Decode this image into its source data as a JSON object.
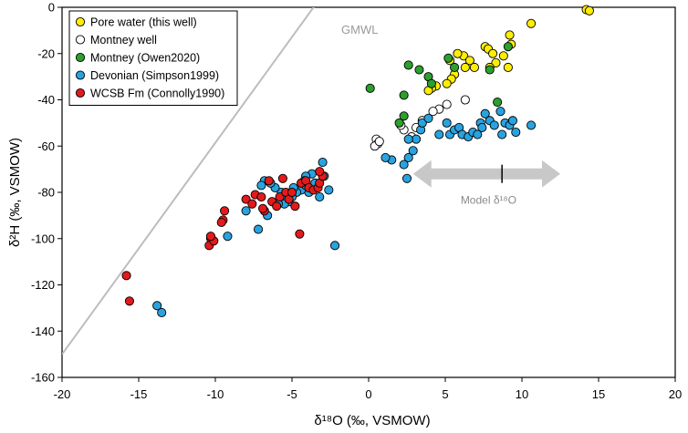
{
  "chart_data": {
    "type": "scatter",
    "xlabel": "δ¹⁸O (‰, VSMOW)",
    "ylabel": "δ²H (‰, VSMOW)",
    "xlim": [
      -20,
      20
    ],
    "ylim": [
      -160,
      0
    ],
    "xticks": [
      -20,
      -15,
      -10,
      -5,
      0,
      5,
      10,
      15,
      20
    ],
    "yticks": [
      0,
      -20,
      -40,
      -60,
      -80,
      -100,
      -120,
      -140,
      -160
    ],
    "legend_position": "top-left",
    "gmwl": {
      "label": "GMWL",
      "x": [
        -20,
        -2.5
      ],
      "y": [
        -150,
        10
      ]
    },
    "model_annotation": {
      "label": "Model δ¹⁸O",
      "x_from": 2.9,
      "x_to": 12.5,
      "center_x": 8.7,
      "y": -72
    },
    "series": [
      {
        "name": "Pore water (this well)",
        "fill": "#ffee00",
        "points": [
          [
            14.2,
            -1
          ],
          [
            14.4,
            -1.5
          ],
          [
            10.6,
            -7
          ],
          [
            9.2,
            -12
          ],
          [
            9.3,
            -16
          ],
          [
            7.6,
            -17
          ],
          [
            7.8,
            -18
          ],
          [
            8.1,
            -20
          ],
          [
            8.8,
            -21
          ],
          [
            6.2,
            -21
          ],
          [
            5.8,
            -20
          ],
          [
            5.3,
            -23
          ],
          [
            6.6,
            -23
          ],
          [
            6.9,
            -26
          ],
          [
            8.3,
            -24
          ],
          [
            7.9,
            -26
          ],
          [
            9.1,
            -26
          ],
          [
            6.3,
            -26
          ],
          [
            5.6,
            -29
          ],
          [
            5.4,
            -31
          ],
          [
            5.1,
            -33
          ],
          [
            4.4,
            -34
          ],
          [
            4.1,
            -35
          ],
          [
            3.9,
            -36
          ]
        ]
      },
      {
        "name": "Montney well",
        "fill": "#ffffff",
        "points": [
          [
            6.3,
            -40
          ],
          [
            5.1,
            -42
          ],
          [
            4.6,
            -44
          ],
          [
            4.2,
            -45
          ],
          [
            3.5,
            -49
          ],
          [
            3.1,
            -52
          ],
          [
            2.8,
            -56
          ],
          [
            2.3,
            -53
          ],
          [
            2.1,
            -51
          ],
          [
            0.5,
            -57
          ],
          [
            0.6,
            -59
          ],
          [
            0.4,
            -60
          ],
          [
            0.7,
            -58
          ]
        ]
      },
      {
        "name": "Montney (Owen2020)",
        "fill": "#2ca02c",
        "points": [
          [
            2.6,
            -25
          ],
          [
            3.3,
            -27
          ],
          [
            3.9,
            -30
          ],
          [
            4.1,
            -33
          ],
          [
            5.2,
            -22
          ],
          [
            5.6,
            -26
          ],
          [
            7.9,
            -27
          ],
          [
            9.1,
            -17
          ],
          [
            8.4,
            -41
          ],
          [
            2.3,
            -38
          ],
          [
            2.3,
            -47
          ],
          [
            2.0,
            -50
          ],
          [
            0.1,
            -35
          ]
        ]
      },
      {
        "name": "Devonian (Simpson1999)",
        "fill": "#29a3e0",
        "points": [
          [
            1.5,
            -66
          ],
          [
            2.3,
            -68
          ],
          [
            2.6,
            -65
          ],
          [
            2.9,
            -62
          ],
          [
            3.1,
            -57
          ],
          [
            3.4,
            -53
          ],
          [
            3.5,
            -50
          ],
          [
            3.9,
            -48
          ],
          [
            4.6,
            -55
          ],
          [
            5.1,
            -50
          ],
          [
            5.3,
            -55
          ],
          [
            5.6,
            -53
          ],
          [
            5.9,
            -52
          ],
          [
            6.1,
            -55
          ],
          [
            6.5,
            -56
          ],
          [
            6.8,
            -54
          ],
          [
            7.3,
            -50
          ],
          [
            7.4,
            -52
          ],
          [
            7.9,
            -49
          ],
          [
            7.6,
            -46
          ],
          [
            8.2,
            -51
          ],
          [
            8.6,
            -45
          ],
          [
            8.9,
            -50
          ],
          [
            9.2,
            -51
          ],
          [
            9.4,
            -49
          ],
          [
            9.6,
            -54
          ],
          [
            10.6,
            -51
          ],
          [
            8.7,
            -55
          ],
          [
            7.1,
            -55
          ],
          [
            2.6,
            -57
          ],
          [
            1.1,
            -65
          ],
          [
            2.5,
            -74
          ],
          [
            -2.2,
            -103
          ],
          [
            -3,
            -67
          ],
          [
            -2.9,
            -73
          ],
          [
            -2.6,
            -79
          ],
          [
            -3.2,
            -82
          ],
          [
            -3.5,
            -76
          ],
          [
            -3.7,
            -72
          ],
          [
            -3.9,
            -80
          ],
          [
            -4.1,
            -73
          ],
          [
            -4.2,
            -75
          ],
          [
            -4.4,
            -79
          ],
          [
            -4.7,
            -80
          ],
          [
            -4.9,
            -78
          ],
          [
            -5.0,
            -82
          ],
          [
            -5.2,
            -84
          ],
          [
            -5.4,
            -83
          ],
          [
            -5.5,
            -85
          ],
          [
            -5.7,
            -80
          ],
          [
            -5.9,
            -85
          ],
          [
            -6.1,
            -78
          ],
          [
            -6.4,
            -76
          ],
          [
            -6.6,
            -90
          ],
          [
            -6.8,
            -75
          ],
          [
            -7.0,
            -77
          ],
          [
            -7.2,
            -96
          ],
          [
            -8.0,
            -88
          ],
          [
            -9.2,
            -99
          ],
          [
            -13.5,
            -132
          ],
          [
            -13.8,
            -129
          ],
          [
            -4.1,
            -77
          ]
        ]
      },
      {
        "name": "WCSB Fm (Connolly1990)",
        "fill": "#e31a1c",
        "points": [
          [
            -15.8,
            -116
          ],
          [
            -15.6,
            -127
          ],
          [
            -10.3,
            -100
          ],
          [
            -10.4,
            -103
          ],
          [
            -10.1,
            -101
          ],
          [
            -10.3,
            -99
          ],
          [
            -9.5,
            -92
          ],
          [
            -9.4,
            -88
          ],
          [
            -9.6,
            -93
          ],
          [
            -8.0,
            -83
          ],
          [
            -7.6,
            -85
          ],
          [
            -7.4,
            -81
          ],
          [
            -7.0,
            -82
          ],
          [
            -6.8,
            -88
          ],
          [
            -6.5,
            -75
          ],
          [
            -6.3,
            -84
          ],
          [
            -6.0,
            -86
          ],
          [
            -5.8,
            -82
          ],
          [
            -5.6,
            -74
          ],
          [
            -5.4,
            -80
          ],
          [
            -5.2,
            -83
          ],
          [
            -5.0,
            -80
          ],
          [
            -4.8,
            -86
          ],
          [
            -4.4,
            -76
          ],
          [
            -4.1,
            -75
          ],
          [
            -3.9,
            -78
          ],
          [
            -3.6,
            -79
          ],
          [
            -3.3,
            -78
          ],
          [
            -3.2,
            -76
          ],
          [
            -3.0,
            -73
          ],
          [
            -3.2,
            -71
          ],
          [
            -4.5,
            -98
          ],
          [
            -6.9,
            -87
          ]
        ]
      }
    ]
  }
}
